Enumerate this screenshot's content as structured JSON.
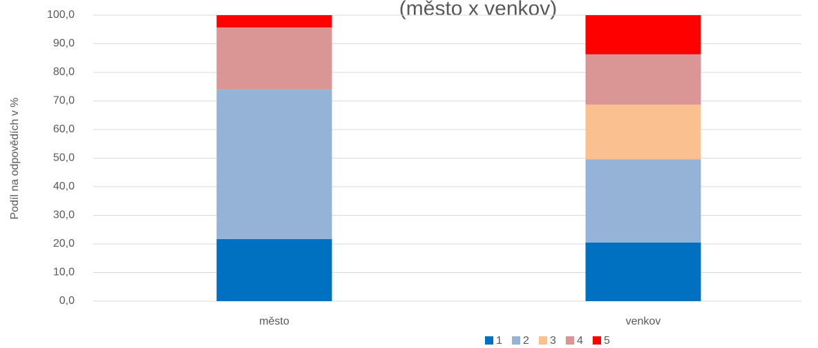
{
  "chart_data": {
    "type": "bar",
    "stacked": true,
    "title": "(město x venkov)",
    "y_label": "Podíl na odpovědích v %",
    "categories": [
      "město",
      "venkov"
    ],
    "series": [
      {
        "name": "1",
        "color": "#0070c0",
        "values": [
          21.7,
          20.5
        ]
      },
      {
        "name": "2",
        "color": "#95b3d7",
        "values": [
          52.3,
          29.1
        ]
      },
      {
        "name": "3",
        "color": "#fac090",
        "values": [
          0,
          19.1
        ]
      },
      {
        "name": "4",
        "color": "#d99694",
        "values": [
          21.7,
          17.6
        ]
      },
      {
        "name": "5",
        "color": "#ff0000",
        "values": [
          4.3,
          13.7
        ]
      }
    ],
    "ylim": [
      0,
      100
    ],
    "yticks": [
      {
        "value": 0,
        "label": "0,0"
      },
      {
        "value": 10,
        "label": "10,0"
      },
      {
        "value": 20,
        "label": "20,0"
      },
      {
        "value": 30,
        "label": "30,0"
      },
      {
        "value": 40,
        "label": "40,0"
      },
      {
        "value": 50,
        "label": "50,0"
      },
      {
        "value": 60,
        "label": "60,0"
      },
      {
        "value": 70,
        "label": "70,0"
      },
      {
        "value": 80,
        "label": "80,0"
      },
      {
        "value": 90,
        "label": "90,0"
      },
      {
        "value": 100,
        "label": "100,0"
      }
    ],
    "grid": true,
    "legend": "bottom"
  }
}
